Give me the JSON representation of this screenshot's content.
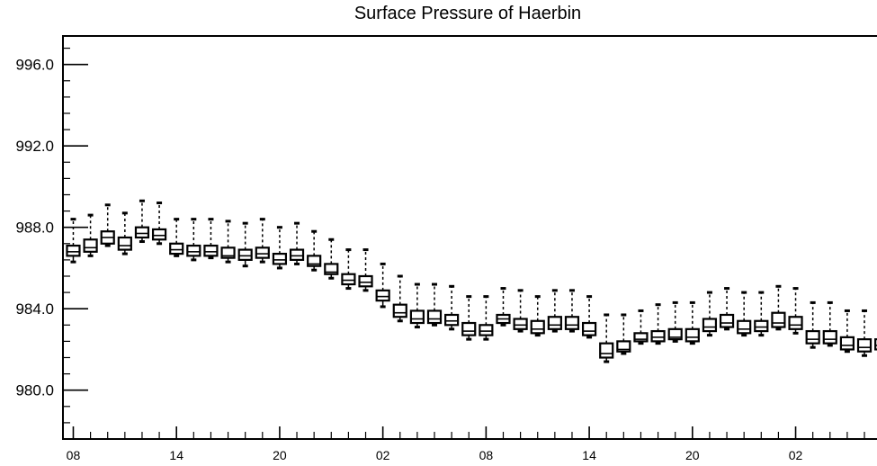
{
  "chart_data": {
    "type": "box",
    "title": "Surface Pressure of Haerbin",
    "xlabel": "",
    "ylabel": "",
    "ylim": [
      977.6,
      997.4
    ],
    "xlim": [
      -0.6,
      48.3
    ],
    "grid": false,
    "y_ticks": [
      980.0,
      984.0,
      988.0,
      992.0,
      996.0
    ],
    "y_tick_labels": [
      "980.0",
      "984.0",
      "988.0",
      "992.0",
      "996.0"
    ],
    "x_tick_positions": [
      0,
      6,
      12,
      18,
      24,
      30,
      36,
      42,
      48
    ],
    "x_tick_labels": [
      "08",
      "14",
      "20",
      "02",
      "08",
      "14",
      "20",
      "02",
      "08"
    ],
    "series": [
      {
        "values": [
          {
            "x": 0,
            "min": 986.3,
            "q1": 986.6,
            "median": 986.8,
            "q3": 987.1,
            "max": 988.4
          },
          {
            "x": 1,
            "min": 986.6,
            "q1": 986.8,
            "median": 987.0,
            "q3": 987.4,
            "max": 988.6
          },
          {
            "x": 2,
            "min": 987.1,
            "q1": 987.2,
            "median": 987.5,
            "q3": 987.8,
            "max": 989.1
          },
          {
            "x": 3,
            "min": 986.7,
            "q1": 986.9,
            "median": 987.1,
            "q3": 987.5,
            "max": 988.7
          },
          {
            "x": 4,
            "min": 987.3,
            "q1": 987.5,
            "median": 987.7,
            "q3": 988.0,
            "max": 989.3
          },
          {
            "x": 5,
            "min": 987.2,
            "q1": 987.4,
            "median": 987.6,
            "q3": 987.9,
            "max": 989.2
          },
          {
            "x": 6,
            "min": 986.6,
            "q1": 986.7,
            "median": 986.9,
            "q3": 987.2,
            "max": 988.4
          },
          {
            "x": 7,
            "min": 986.4,
            "q1": 986.6,
            "median": 986.8,
            "q3": 987.1,
            "max": 988.4
          },
          {
            "x": 8,
            "min": 986.5,
            "q1": 986.6,
            "median": 986.8,
            "q3": 987.1,
            "max": 988.4
          },
          {
            "x": 9,
            "min": 986.3,
            "q1": 986.5,
            "median": 986.6,
            "q3": 987.0,
            "max": 988.3
          },
          {
            "x": 10,
            "min": 986.1,
            "q1": 986.4,
            "median": 986.6,
            "q3": 986.9,
            "max": 988.2
          },
          {
            "x": 11,
            "min": 986.3,
            "q1": 986.5,
            "median": 986.7,
            "q3": 987.0,
            "max": 988.4
          },
          {
            "x": 12,
            "min": 986.0,
            "q1": 986.2,
            "median": 986.4,
            "q3": 986.7,
            "max": 988.0
          },
          {
            "x": 13,
            "min": 986.2,
            "q1": 986.4,
            "median": 986.6,
            "q3": 986.9,
            "max": 988.2
          },
          {
            "x": 14,
            "min": 985.9,
            "q1": 986.1,
            "median": 986.2,
            "q3": 986.6,
            "max": 987.8
          },
          {
            "x": 15,
            "min": 985.5,
            "q1": 985.7,
            "median": 985.8,
            "q3": 986.2,
            "max": 987.4
          },
          {
            "x": 16,
            "min": 985.0,
            "q1": 985.2,
            "median": 985.4,
            "q3": 985.7,
            "max": 986.9
          },
          {
            "x": 17,
            "min": 984.9,
            "q1": 985.1,
            "median": 985.3,
            "q3": 985.6,
            "max": 986.9
          },
          {
            "x": 18,
            "min": 984.1,
            "q1": 984.4,
            "median": 984.6,
            "q3": 984.9,
            "max": 986.2
          },
          {
            "x": 19,
            "min": 983.4,
            "q1": 983.6,
            "median": 983.8,
            "q3": 984.2,
            "max": 985.6
          },
          {
            "x": 20,
            "min": 983.1,
            "q1": 983.3,
            "median": 983.5,
            "q3": 983.9,
            "max": 985.2
          },
          {
            "x": 21,
            "min": 983.2,
            "q1": 983.3,
            "median": 983.5,
            "q3": 983.9,
            "max": 985.2
          },
          {
            "x": 22,
            "min": 983.0,
            "q1": 983.2,
            "median": 983.4,
            "q3": 983.7,
            "max": 985.1
          },
          {
            "x": 23,
            "min": 982.5,
            "q1": 982.7,
            "median": 982.9,
            "q3": 983.3,
            "max": 984.6
          },
          {
            "x": 24,
            "min": 982.5,
            "q1": 982.7,
            "median": 982.9,
            "q3": 983.2,
            "max": 984.6
          },
          {
            "x": 25,
            "min": 983.2,
            "q1": 983.3,
            "median": 983.5,
            "q3": 983.7,
            "max": 985.0
          },
          {
            "x": 26,
            "min": 982.9,
            "q1": 983.0,
            "median": 983.2,
            "q3": 983.5,
            "max": 984.9
          },
          {
            "x": 27,
            "min": 982.7,
            "q1": 982.8,
            "median": 983.0,
            "q3": 983.4,
            "max": 984.6
          },
          {
            "x": 28,
            "min": 982.9,
            "q1": 983.0,
            "median": 983.2,
            "q3": 983.6,
            "max": 984.9
          },
          {
            "x": 29,
            "min": 982.9,
            "q1": 983.0,
            "median": 983.2,
            "q3": 983.6,
            "max": 984.9
          },
          {
            "x": 30,
            "min": 982.6,
            "q1": 982.7,
            "median": 982.9,
            "q3": 983.3,
            "max": 984.6
          },
          {
            "x": 31,
            "min": 981.4,
            "q1": 981.6,
            "median": 981.8,
            "q3": 982.3,
            "max": 983.7
          },
          {
            "x": 32,
            "min": 981.8,
            "q1": 981.9,
            "median": 982.0,
            "q3": 982.4,
            "max": 983.7
          },
          {
            "x": 33,
            "min": 982.3,
            "q1": 982.4,
            "median": 982.5,
            "q3": 982.8,
            "max": 983.9
          },
          {
            "x": 34,
            "min": 982.3,
            "q1": 982.4,
            "median": 982.6,
            "q3": 982.9,
            "max": 984.2
          },
          {
            "x": 35,
            "min": 982.4,
            "q1": 982.5,
            "median": 982.6,
            "q3": 983.0,
            "max": 984.3
          },
          {
            "x": 36,
            "min": 982.3,
            "q1": 982.4,
            "median": 982.6,
            "q3": 983.0,
            "max": 984.3
          },
          {
            "x": 37,
            "min": 982.7,
            "q1": 982.9,
            "median": 983.1,
            "q3": 983.5,
            "max": 984.8
          },
          {
            "x": 38,
            "min": 983.0,
            "q1": 983.1,
            "median": 983.3,
            "q3": 983.7,
            "max": 985.0
          },
          {
            "x": 39,
            "min": 982.7,
            "q1": 982.8,
            "median": 983.0,
            "q3": 983.4,
            "max": 984.8
          },
          {
            "x": 40,
            "min": 982.7,
            "q1": 982.9,
            "median": 983.1,
            "q3": 983.4,
            "max": 984.8
          },
          {
            "x": 41,
            "min": 983.0,
            "q1": 983.1,
            "median": 983.3,
            "q3": 983.8,
            "max": 985.1
          },
          {
            "x": 42,
            "min": 982.8,
            "q1": 983.0,
            "median": 983.2,
            "q3": 983.6,
            "max": 985.0
          },
          {
            "x": 43,
            "min": 982.1,
            "q1": 982.3,
            "median": 982.5,
            "q3": 982.9,
            "max": 984.3
          },
          {
            "x": 44,
            "min": 982.2,
            "q1": 982.3,
            "median": 982.5,
            "q3": 982.9,
            "max": 984.3
          },
          {
            "x": 45,
            "min": 981.9,
            "q1": 982.0,
            "median": 982.2,
            "q3": 982.6,
            "max": 983.9
          },
          {
            "x": 46,
            "min": 981.7,
            "q1": 981.9,
            "median": 982.1,
            "q3": 982.5,
            "max": 983.9
          },
          {
            "x": 47,
            "min": 981.8,
            "q1": 982.0,
            "median": 982.2,
            "q3": 982.5,
            "max": 983.9
          },
          {
            "x": 48,
            "min": 981.9,
            "q1": 982.1,
            "median": 982.3,
            "q3": 982.6,
            "max": 983.8
          }
        ]
      }
    ]
  }
}
